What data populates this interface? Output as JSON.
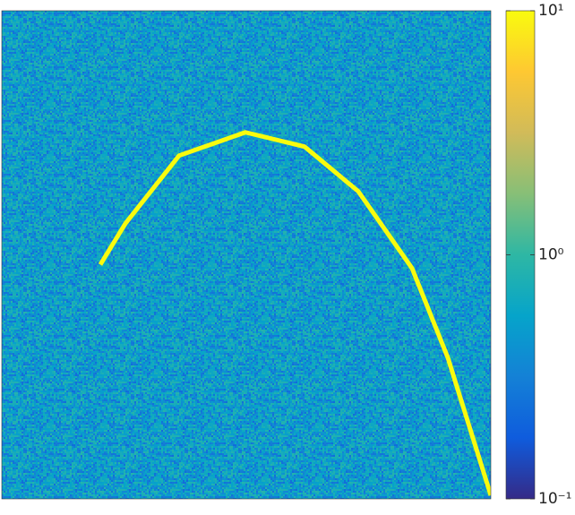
{
  "chart_data": {
    "type": "heatmap",
    "x": [
      55,
      69,
      99,
      136,
      169,
      199,
      229,
      249,
      273
    ],
    "y": [
      142,
      119,
      81,
      68,
      76,
      101,
      144,
      194,
      271
    ],
    "xlim": [
      0,
      273
    ],
    "ylim": [
      273,
      0
    ],
    "color": "#f9fb0e",
    "colorbar": {
      "log": true,
      "clim": [
        0.1,
        10
      ],
      "ticks": [
        {
          "value": 0.1,
          "label": "10⁻¹"
        },
        {
          "value": 1,
          "label": "10⁰"
        },
        {
          "value": 10,
          "label": "10¹"
        }
      ],
      "colormap": [
        "#352a87",
        "#0f5cdd",
        "#1481d6",
        "#06a4ca",
        "#2eb7a4",
        "#87bf77",
        "#d1bb59",
        "#fec832",
        "#f9fb0e"
      ]
    }
  }
}
